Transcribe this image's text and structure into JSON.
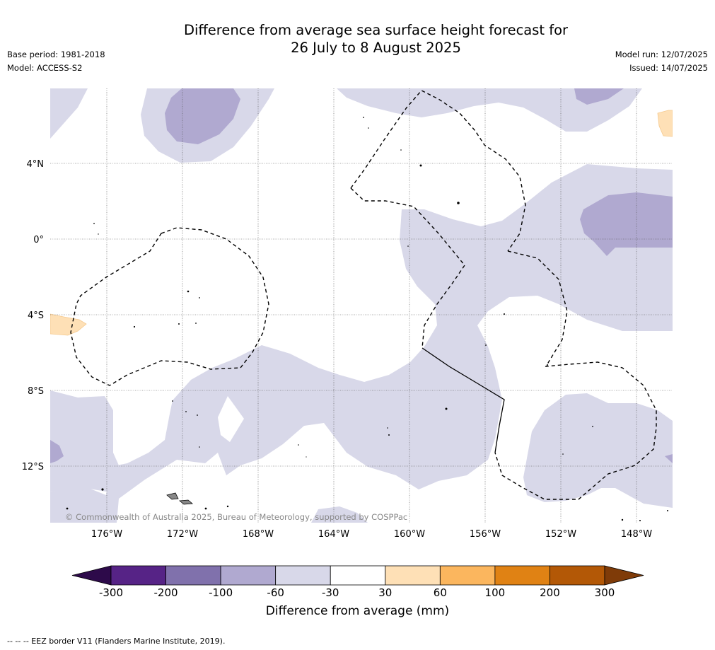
{
  "title_line1": "Difference from average sea surface height forecast for",
  "title_line2": "26 July to 8 August 2025",
  "base_period": "Base period: 1981-2018",
  "model": "Model: ACCESS-S2",
  "model_run": "Model run: 12/07/2025",
  "issued": "Issued: 14/07/2025",
  "copyright": "© Commonwealth of Australia 2025, Bureau of Meteorology, supported by COSPPac",
  "footnote": "--  --  -- EEZ border V11 (Flanders Marine Institute, 2019).",
  "map": {
    "lon_ticks": [
      {
        "lon": -176,
        "label": "176°W"
      },
      {
        "lon": -172,
        "label": "172°W"
      },
      {
        "lon": -168,
        "label": "168°W"
      },
      {
        "lon": -164,
        "label": "164°W"
      },
      {
        "lon": -160,
        "label": "160°W"
      },
      {
        "lon": -156,
        "label": "156°W"
      },
      {
        "lon": -152,
        "label": "152°W"
      },
      {
        "lon": -148,
        "label": "148°W"
      }
    ],
    "lat_ticks": [
      {
        "lat": 4,
        "label": "4°N"
      },
      {
        "lat": 0,
        "label": "0°"
      },
      {
        "lat": -4,
        "label": "4°S"
      },
      {
        "lat": -8,
        "label": "8°S"
      },
      {
        "lat": -12,
        "label": "12°S"
      }
    ],
    "gridlines": true,
    "legend_colors": {
      "lt_-300": "#2d0a4a",
      "-300_-200": "#562386",
      "-200_-100": "#8071ac",
      "-100_-60": "#b0a9d0",
      "-60_-30": "#d8d8e9",
      "-30_30": "#ffffff",
      "30_60": "#fee0b6",
      "60_100": "#fbb65e",
      "100_200": "#e08214",
      "200_300": "#b35806",
      "gt_300": "#7f3b08"
    }
  },
  "colorbar": {
    "title": "Difference from average (mm)",
    "ticks": [
      "-300",
      "-200",
      "-100",
      "-60",
      "-30",
      "30",
      "60",
      "100",
      "200",
      "300"
    ],
    "colors": [
      "#562386",
      "#8071ac",
      "#b0a9d0",
      "#d8d8e9",
      "#ffffff",
      "#fee0b6",
      "#fbb65e",
      "#e08214",
      "#b35806"
    ],
    "under_color": "#2d0a4a",
    "over_color": "#7f3b08"
  }
}
